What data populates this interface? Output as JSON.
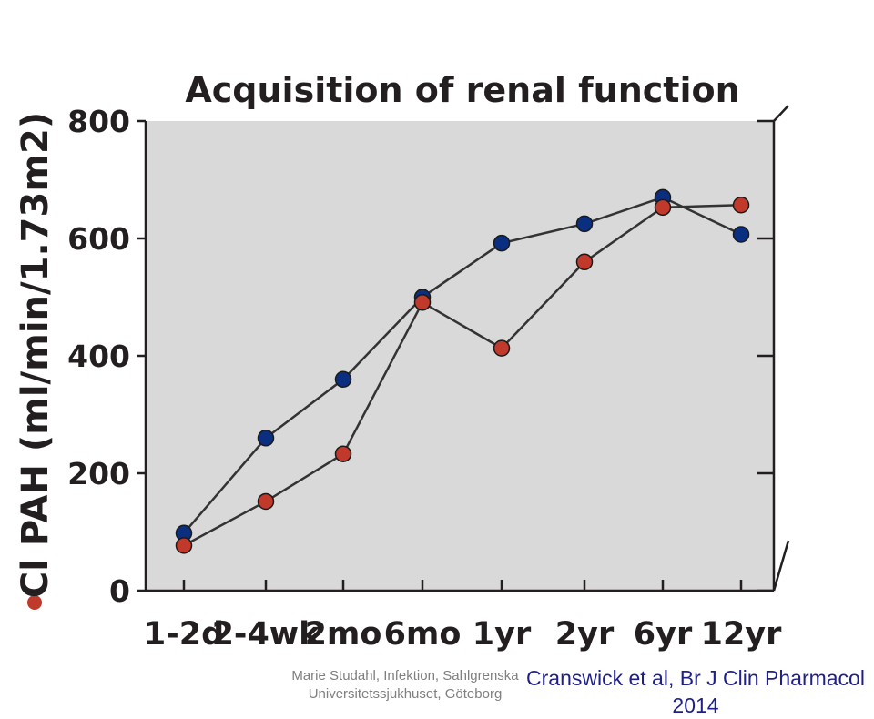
{
  "chart_data": {
    "type": "line",
    "title": "Acquisition of renal function",
    "ylabel": "Cl PAH (ml/min/1.73m2)",
    "xlabel": "",
    "categories": [
      "1-2d",
      "2-4wk",
      "2mo",
      "6mo",
      "1yr",
      "2yr",
      "6yr",
      "12yr"
    ],
    "ylim": [
      0,
      800
    ],
    "yticks": [
      "0",
      "200",
      "400",
      "600",
      "800"
    ],
    "grid": false,
    "series": [
      {
        "color": "#0b2f80",
        "values": [
          98,
          260,
          360,
          500,
          592,
          625,
          670,
          607
        ]
      },
      {
        "color": "#c0392b",
        "values": [
          77,
          152,
          233,
          491,
          413,
          560,
          653,
          657
        ]
      }
    ],
    "legend_marker_color": "#c0392b"
  },
  "footer": {
    "credit_line1": "Marie Studahl, Infektion, Sahlgrenska",
    "credit_line2": "Universitetssjukhuset, Göteborg",
    "citation_line1": "Cranswick et al, Br J Clin Pharmacol",
    "citation_line2": "2014"
  },
  "colors": {
    "plot_background": "#d9d9d9",
    "axis": "#231f20",
    "citation": "#1f1f8a",
    "credit": "#7f7f7f"
  }
}
